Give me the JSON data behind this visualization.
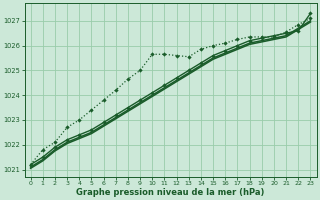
{
  "xlabel": "Graphe pression niveau de la mer (hPa)",
  "bg_color": "#cce8d8",
  "line_color": "#1a5c2a",
  "grid_color": "#99ccaa",
  "xlim": [
    -0.5,
    23.5
  ],
  "ylim": [
    1020.7,
    1027.7
  ],
  "yticks": [
    1021,
    1022,
    1023,
    1024,
    1025,
    1026,
    1027
  ],
  "xticks": [
    0,
    1,
    2,
    3,
    4,
    5,
    6,
    7,
    8,
    9,
    10,
    11,
    12,
    13,
    14,
    15,
    16,
    17,
    18,
    19,
    20,
    21,
    22,
    23
  ],
  "series_linear1": [
    1021.2,
    1021.5,
    1021.9,
    1022.2,
    1022.4,
    1022.6,
    1022.9,
    1023.2,
    1023.5,
    1023.8,
    1024.1,
    1024.4,
    1024.7,
    1025.0,
    1025.3,
    1025.6,
    1025.8,
    1026.0,
    1026.2,
    1026.3,
    1026.4,
    1026.5,
    1026.6,
    1027.3
  ],
  "series_linear2": [
    1021.1,
    1021.4,
    1021.8,
    1022.1,
    1022.3,
    1022.5,
    1022.8,
    1023.1,
    1023.4,
    1023.7,
    1024.0,
    1024.3,
    1024.6,
    1024.9,
    1025.2,
    1025.5,
    1025.7,
    1025.9,
    1026.1,
    1026.2,
    1026.3,
    1026.4,
    1026.7,
    1027.0
  ],
  "series_linear3": [
    1021.05,
    1021.35,
    1021.75,
    1022.05,
    1022.25,
    1022.45,
    1022.75,
    1023.05,
    1023.35,
    1023.65,
    1023.95,
    1024.25,
    1024.55,
    1024.85,
    1025.15,
    1025.45,
    1025.65,
    1025.85,
    1026.05,
    1026.15,
    1026.25,
    1026.35,
    1026.65,
    1026.95
  ],
  "series_dotted": [
    1021.2,
    1021.8,
    1022.1,
    1022.7,
    1023.0,
    1023.4,
    1023.8,
    1024.2,
    1024.65,
    1025.0,
    1025.65,
    1025.65,
    1025.6,
    1025.55,
    1025.85,
    1026.0,
    1026.1,
    1026.25,
    1026.35,
    1026.35,
    1026.35,
    1026.55,
    1026.85,
    1027.1
  ]
}
